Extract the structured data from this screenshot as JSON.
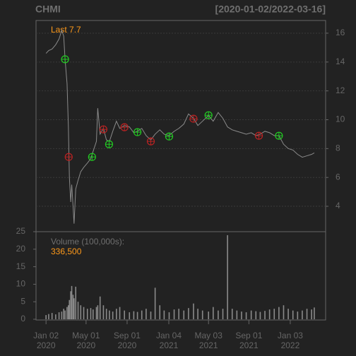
{
  "chart_data": [
    {
      "type": "line",
      "title": "CHMI",
      "subtitle": "[2020-01-02/2022-03-16]",
      "last_label": "Last 7.7",
      "x": [
        "2020-01-02",
        "2020-01-10",
        "2020-01-20",
        "2020-01-31",
        "2020-02-10",
        "2020-02-18",
        "2020-02-24",
        "2020-02-28",
        "2020-03-05",
        "2020-03-09",
        "2020-03-12",
        "2020-03-16",
        "2020-03-19",
        "2020-03-23",
        "2020-03-26",
        "2020-03-31",
        "2020-04-07",
        "2020-04-15",
        "2020-04-24",
        "2020-05-05",
        "2020-05-15",
        "2020-05-22",
        "2020-06-01",
        "2020-06-05",
        "2020-06-12",
        "2020-06-22",
        "2020-07-01",
        "2020-07-10",
        "2020-07-20",
        "2020-07-31",
        "2020-08-10",
        "2020-08-24",
        "2020-09-08",
        "2020-09-21",
        "2020-10-02",
        "2020-10-15",
        "2020-10-28",
        "2020-11-11",
        "2020-11-24",
        "2020-12-08",
        "2020-12-21",
        "2021-01-05",
        "2021-01-20",
        "2021-02-03",
        "2021-02-18",
        "2021-03-04",
        "2021-03-19",
        "2021-04-01",
        "2021-04-15",
        "2021-05-03",
        "2021-05-17",
        "2021-06-01",
        "2021-06-15",
        "2021-06-29",
        "2021-07-13",
        "2021-07-27",
        "2021-08-10",
        "2021-08-24",
        "2021-09-08",
        "2021-09-22",
        "2021-10-05",
        "2021-10-19",
        "2021-11-02",
        "2021-11-16",
        "2021-11-30",
        "2021-12-14",
        "2021-12-28",
        "2022-01-11",
        "2022-01-25",
        "2022-02-08",
        "2022-02-22",
        "2022-03-08",
        "2022-03-16"
      ],
      "series": [
        {
          "color": "#8a8a8a",
          "values": [
            14.6,
            14.8,
            14.9,
            15.2,
            15.6,
            16.2,
            15.8,
            14.2,
            12.5,
            9.5,
            6.0,
            4.3,
            5.5,
            4.0,
            2.8,
            5.2,
            5.8,
            6.4,
            6.7,
            7.0,
            7.3,
            7.8,
            8.5,
            10.8,
            9.0,
            9.4,
            8.6,
            8.5,
            9.2,
            9.9,
            9.4,
            9.6,
            9.5,
            9.1,
            9.2,
            9.4,
            8.9,
            8.6,
            9.0,
            9.3,
            9.0,
            8.9,
            9.2,
            9.4,
            9.7,
            10.4,
            10.1,
            9.6,
            9.9,
            10.3,
            9.9,
            10.5,
            10.1,
            9.5,
            9.3,
            9.2,
            9.1,
            9.0,
            9.1,
            8.9,
            9.0,
            9.2,
            9.1,
            8.9,
            8.9,
            8.3,
            8.0,
            7.9,
            7.6,
            7.4,
            7.5,
            7.6,
            7.7
          ]
        }
      ],
      "buy_points": {
        "color": "#22cc22",
        "x": [
          "2020-02-28",
          "2020-05-19",
          "2020-07-09",
          "2020-10-02",
          "2021-01-05",
          "2021-05-03",
          "2021-11-30"
        ],
        "values": [
          14.19,
          7.42,
          8.3,
          9.14,
          8.84,
          10.31,
          8.89
        ]
      },
      "sell_points": {
        "color": "#bb2222",
        "x": [
          "2020-03-10",
          "2020-06-22",
          "2020-08-24",
          "2020-11-11",
          "2021-03-19",
          "2021-10-01"
        ],
        "values": [
          7.42,
          9.33,
          9.48,
          8.5,
          10.07,
          8.89
        ]
      },
      "xlim": [
        "2019-12-03",
        "2022-04-19"
      ],
      "ylim": [
        2.24,
        16.88
      ],
      "yticks": [
        4,
        6,
        8,
        10,
        12,
        14,
        16
      ],
      "grid": true
    },
    {
      "type": "bar",
      "title": "Volume (100,000s):",
      "last_label": "336,500",
      "color": "#8a8a8a",
      "values": [
        1.2,
        1.5,
        1.8,
        1.4,
        2.0,
        2.2,
        3.0,
        2.5,
        3.5,
        4.0,
        5.5,
        8.0,
        9.5,
        7.0,
        6.0,
        9.3,
        5.0,
        4.0,
        3.5,
        3.0,
        3.2,
        2.8,
        3.5,
        4.0,
        6.5,
        4.0,
        3.0,
        2.5,
        2.2,
        3.0,
        3.5,
        2.5,
        2.0,
        2.3,
        2.1,
        2.5,
        3.0,
        2.2,
        9.0,
        4.0,
        2.5,
        2.0,
        2.8,
        3.0,
        2.5,
        3.2,
        4.5,
        3.0,
        2.5,
        2.2,
        3.5,
        2.5,
        3.0,
        24.0,
        3.0,
        2.5,
        2.2,
        2.0,
        2.5,
        2.3,
        2.1,
        2.4,
        2.8,
        3.0,
        3.5,
        4.0,
        3.0,
        2.5,
        2.2,
        2.5,
        3.0,
        2.8,
        3.365
      ],
      "ylim": [
        -0.2,
        25
      ],
      "yticks": [
        0,
        5,
        10,
        15,
        20,
        25
      ],
      "xticks": [
        {
          "value": "2020-01-02",
          "label": "Jan 02\n2020"
        },
        {
          "value": "2020-05-01",
          "label": "May 01\n2020"
        },
        {
          "value": "2020-09-01",
          "label": "Sep 01\n2020"
        },
        {
          "value": "2021-01-04",
          "label": "Jan 04\n2021"
        },
        {
          "value": "2021-05-03",
          "label": "May 03\n2021"
        },
        {
          "value": "2021-09-01",
          "label": "Sep 01\n2021"
        },
        {
          "value": "2022-01-03",
          "label": "Jan 03\n2022"
        }
      ]
    }
  ]
}
